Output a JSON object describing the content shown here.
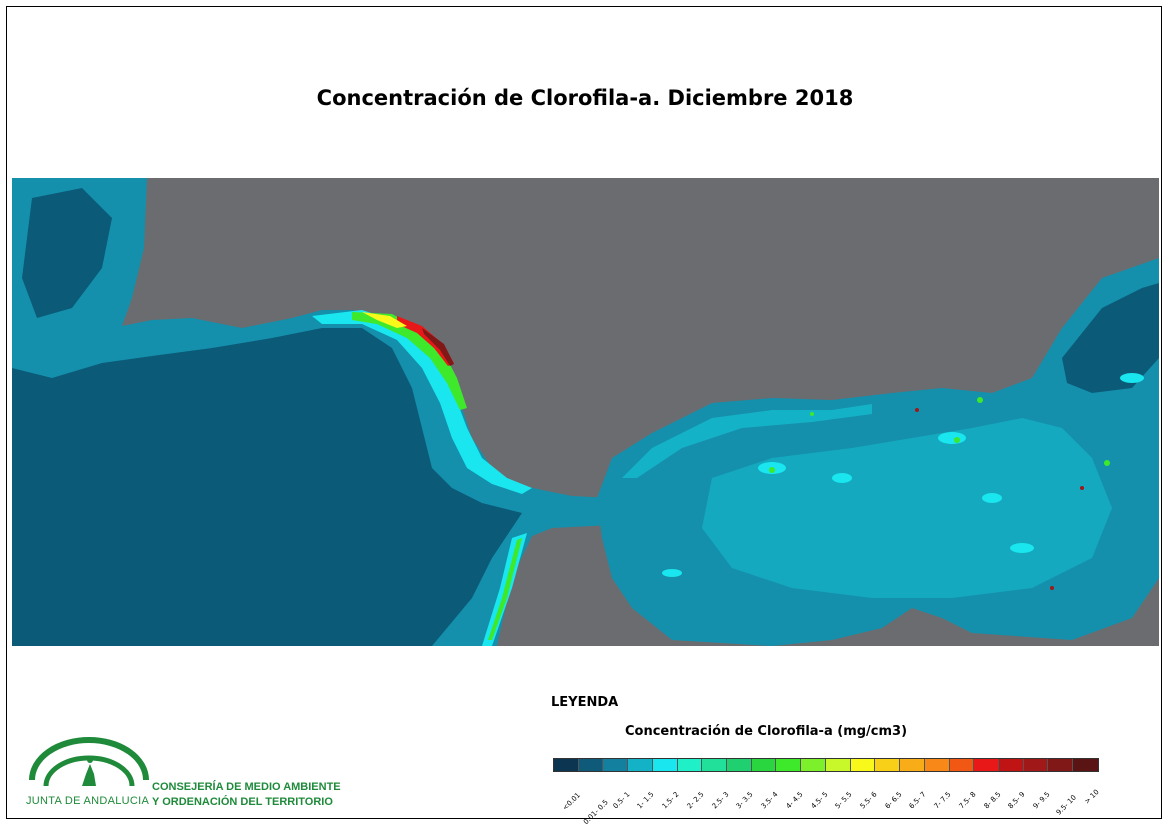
{
  "title": "Concentración de Clorofila-a. Diciembre 2018",
  "legend": {
    "heading": "LEYENDA",
    "subtitle": "Concentración de Clorofila-a (mg/cm3)",
    "classes": [
      {
        "label": "<0.01",
        "color": "#0b3550"
      },
      {
        "label": "0.01- 0.5",
        "color": "#0e5a78"
      },
      {
        "label": "0.5- 1",
        "color": "#1480a0"
      },
      {
        "label": "1- 1.5",
        "color": "#14b2c6"
      },
      {
        "label": "1.5- 2",
        "color": "#19e6ee"
      },
      {
        "label": "2- 2.5",
        "color": "#20f0c8"
      },
      {
        "label": "2.5- 3",
        "color": "#20e09a"
      },
      {
        "label": "3- 3.5",
        "color": "#20d070"
      },
      {
        "label": "3.5- 4",
        "color": "#2ad640"
      },
      {
        "label": "4- 4.5",
        "color": "#3ee82a"
      },
      {
        "label": "4.5- 5",
        "color": "#7cf02a"
      },
      {
        "label": "5- 5.5",
        "color": "#c8f82a"
      },
      {
        "label": "5.5- 6",
        "color": "#f8f81a"
      },
      {
        "label": "6- 6.5",
        "color": "#f8d018"
      },
      {
        "label": "6.5- 7",
        "color": "#f8ac18"
      },
      {
        "label": "7- 7.5",
        "color": "#f88818"
      },
      {
        "label": "7.5- 8",
        "color": "#f05814"
      },
      {
        "label": "8- 8.5",
        "color": "#e81818"
      },
      {
        "label": "8.5- 9",
        "color": "#c01414"
      },
      {
        "label": "9- 9.5",
        "color": "#a01818"
      },
      {
        "label": "9.5- 10",
        "color": "#801818"
      },
      {
        "label": "> 10",
        "color": "#5a1414"
      }
    ]
  },
  "map_colors": {
    "land": "#6b6c70",
    "deep": "#0b5a78",
    "mid": "#1490ac",
    "shelf": "#14b2c6",
    "coast": "#19e6ee"
  },
  "organization": {
    "name": "JUNTA DE ANDALUCIA",
    "department_line1": "CONSEJERÍA DE MEDIO AMBIENTE",
    "department_line2": "Y ORDENACIÓN DEL TERRITORIO",
    "brand_color": "#1e8a3a"
  }
}
